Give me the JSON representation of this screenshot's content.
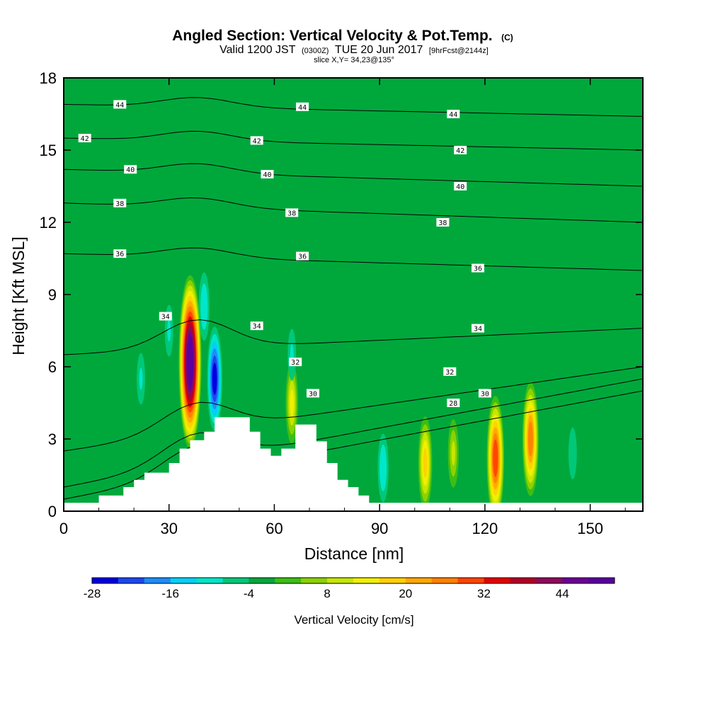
{
  "title": {
    "main": "Angled Section: Vertical Velocity & Pot.Temp.",
    "main_unit": "(C)",
    "valid_prefix": "Valid 1200 JST",
    "valid_utc": "(0300Z)",
    "valid_date": "TUE 20 Jun 2017",
    "fcst": "[9hrFcst@2144z]",
    "slice": "slice X,Y= 34,23@135°"
  },
  "chart_data": {
    "type": "heatmap",
    "xlabel": "Distance [nm]",
    "ylabel": "Height [Kft MSL]",
    "xlim": [
      0,
      165
    ],
    "ylim": [
      0,
      18
    ],
    "x_ticks": [
      0,
      30,
      60,
      90,
      120,
      150
    ],
    "y_ticks": [
      0,
      3,
      6,
      9,
      12,
      15,
      18
    ],
    "field": "Vertical Velocity",
    "colorbar": {
      "label": "Vertical Velocity [cm/s]",
      "min": -28,
      "max": 52,
      "step": 4,
      "tick_values": [
        -28,
        -16,
        -4,
        8,
        20,
        32,
        44
      ],
      "colors": [
        "#0000e0",
        "#1e46f0",
        "#1e8cf8",
        "#00d0f8",
        "#00e6c8",
        "#00c878",
        "#00a83c",
        "#3cbe14",
        "#8cd200",
        "#c8e600",
        "#f0f000",
        "#ffd200",
        "#ffaa00",
        "#ff8200",
        "#ff4600",
        "#e60000",
        "#b40028",
        "#8c0a5a",
        "#6e0096",
        "#5a00a0"
      ]
    },
    "background_value": -2,
    "cells": [
      {
        "x": 36,
        "y": 6.2,
        "v": 48
      },
      {
        "x": 43,
        "y": 5.5,
        "v": -27
      },
      {
        "x": 40,
        "y": 8.5,
        "v": -12
      },
      {
        "x": 30,
        "y": 7.5,
        "v": -10
      },
      {
        "x": 22,
        "y": 5.5,
        "v": -9
      },
      {
        "x": 65,
        "y": 4.5,
        "v": 12
      },
      {
        "x": 65,
        "y": 6.5,
        "v": -10
      },
      {
        "x": 91,
        "y": 1.8,
        "v": -12
      },
      {
        "x": 103,
        "y": 2.0,
        "v": 16
      },
      {
        "x": 111,
        "y": 2.4,
        "v": 10
      },
      {
        "x": 123,
        "y": 2.2,
        "v": 28
      },
      {
        "x": 133,
        "y": 3.0,
        "v": 26
      },
      {
        "x": 145,
        "y": 2.4,
        "v": -8
      }
    ],
    "isentropes": [
      {
        "label": "28",
        "y_left": 0.5,
        "y_right": 5.0
      },
      {
        "label": "30",
        "y_left": 1.0,
        "y_right": 5.5
      },
      {
        "label": "32",
        "y_left": 2.5,
        "y_right": 6.0
      },
      {
        "label": "34",
        "y_left": 6.5,
        "y_right": 7.6
      },
      {
        "label": "36",
        "y_left": 10.7,
        "y_right": 10.0
      },
      {
        "label": "38",
        "y_left": 12.8,
        "y_right": 12.0
      },
      {
        "label": "40",
        "y_left": 14.2,
        "y_right": 13.5
      },
      {
        "label": "42",
        "y_left": 15.5,
        "y_right": 15.0
      },
      {
        "label": "44",
        "y_left": 16.9,
        "y_right": 16.4
      }
    ],
    "terrain": [
      {
        "x": 0,
        "h": 0.35
      },
      {
        "x": 10,
        "h": 0.35
      },
      {
        "x": 10,
        "h": 0.65
      },
      {
        "x": 17,
        "h": 0.65
      },
      {
        "x": 17,
        "h": 1.0
      },
      {
        "x": 20,
        "h": 1.0
      },
      {
        "x": 20,
        "h": 1.3
      },
      {
        "x": 23,
        "h": 1.3
      },
      {
        "x": 23,
        "h": 1.6
      },
      {
        "x": 30,
        "h": 1.6
      },
      {
        "x": 30,
        "h": 2.0
      },
      {
        "x": 33,
        "h": 2.0
      },
      {
        "x": 33,
        "h": 2.6
      },
      {
        "x": 36,
        "h": 2.6
      },
      {
        "x": 36,
        "h": 2.95
      },
      {
        "x": 40,
        "h": 2.95
      },
      {
        "x": 40,
        "h": 3.3
      },
      {
        "x": 43,
        "h": 3.3
      },
      {
        "x": 43,
        "h": 3.9
      },
      {
        "x": 53,
        "h": 3.9
      },
      {
        "x": 53,
        "h": 3.3
      },
      {
        "x": 56,
        "h": 3.3
      },
      {
        "x": 56,
        "h": 2.6
      },
      {
        "x": 59,
        "h": 2.6
      },
      {
        "x": 59,
        "h": 2.3
      },
      {
        "x": 62,
        "h": 2.3
      },
      {
        "x": 62,
        "h": 2.6
      },
      {
        "x": 66,
        "h": 2.6
      },
      {
        "x": 66,
        "h": 3.6
      },
      {
        "x": 72,
        "h": 3.6
      },
      {
        "x": 72,
        "h": 2.9
      },
      {
        "x": 75,
        "h": 2.9
      },
      {
        "x": 75,
        "h": 2.0
      },
      {
        "x": 78,
        "h": 2.0
      },
      {
        "x": 78,
        "h": 1.3
      },
      {
        "x": 81,
        "h": 1.3
      },
      {
        "x": 81,
        "h": 1.0
      },
      {
        "x": 84,
        "h": 1.0
      },
      {
        "x": 84,
        "h": 0.65
      },
      {
        "x": 87,
        "h": 0.65
      },
      {
        "x": 87,
        "h": 0.35
      },
      {
        "x": 165,
        "h": 0.35
      }
    ],
    "contour_labels": [
      {
        "text": "44",
        "x": 16,
        "y": 16.9
      },
      {
        "text": "44",
        "x": 68,
        "y": 16.8
      },
      {
        "text": "44",
        "x": 111,
        "y": 16.5
      },
      {
        "text": "42",
        "x": 6,
        "y": 15.5
      },
      {
        "text": "42",
        "x": 55,
        "y": 15.4
      },
      {
        "text": "42",
        "x": 113,
        "y": 15.0
      },
      {
        "text": "40",
        "x": 19,
        "y": 14.2
      },
      {
        "text": "40",
        "x": 58,
        "y": 14.0
      },
      {
        "text": "40",
        "x": 113,
        "y": 13.5
      },
      {
        "text": "38",
        "x": 16,
        "y": 12.8
      },
      {
        "text": "38",
        "x": 65,
        "y": 12.4
      },
      {
        "text": "38",
        "x": 108,
        "y": 12.0
      },
      {
        "text": "36",
        "x": 16,
        "y": 10.7
      },
      {
        "text": "36",
        "x": 68,
        "y": 10.6
      },
      {
        "text": "36",
        "x": 118,
        "y": 10.1
      },
      {
        "text": "34",
        "x": 29,
        "y": 8.1
      },
      {
        "text": "34",
        "x": 55,
        "y": 7.7
      },
      {
        "text": "34",
        "x": 118,
        "y": 7.6
      },
      {
        "text": "32",
        "x": 66,
        "y": 6.2
      },
      {
        "text": "32",
        "x": 110,
        "y": 5.8
      },
      {
        "text": "30",
        "x": 71,
        "y": 4.9
      },
      {
        "text": "30",
        "x": 120,
        "y": 4.9
      },
      {
        "text": "28",
        "x": 111,
        "y": 4.5
      }
    ]
  }
}
